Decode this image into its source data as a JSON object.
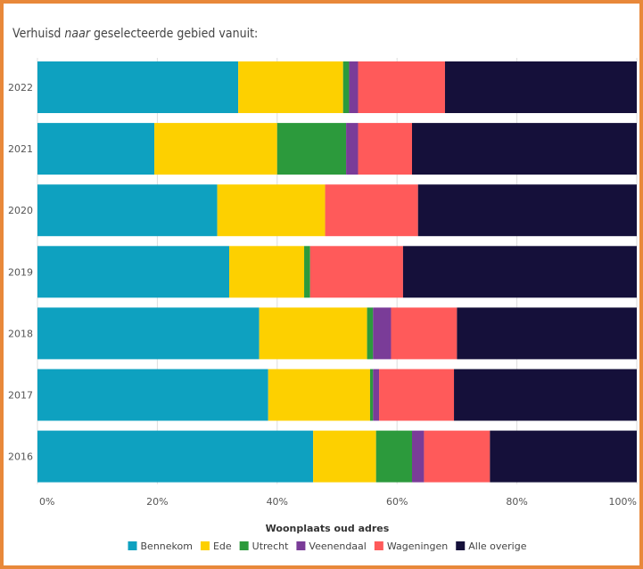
{
  "title": {
    "before": "Verhuisd ",
    "emphasis": "naar",
    "after": " geselecteerde gebied vanuit:"
  },
  "chart_data": {
    "type": "bar",
    "orientation": "horizontal",
    "stacked": true,
    "percent_stacked": true,
    "categories": [
      "2022",
      "2021",
      "2020",
      "2019",
      "2018",
      "2017",
      "2016"
    ],
    "series": [
      {
        "name": "Bennekom",
        "color": "#0ea1c0",
        "values": [
          33.5,
          19.5,
          30.0,
          32.0,
          37.0,
          38.5,
          46.0
        ]
      },
      {
        "name": "Ede",
        "color": "#fdd000",
        "values": [
          17.5,
          20.5,
          18.0,
          12.5,
          18.0,
          17.0,
          10.5
        ]
      },
      {
        "name": "Utrecht",
        "color": "#2c9a3c",
        "values": [
          1.0,
          11.5,
          0.0,
          1.0,
          1.0,
          0.5,
          6.0
        ]
      },
      {
        "name": "Veenendaal",
        "color": "#7a3c98",
        "values": [
          1.5,
          2.0,
          0.0,
          0.0,
          3.0,
          1.0,
          2.0
        ]
      },
      {
        "name": "Wageningen",
        "color": "#ff5a5a",
        "values": [
          14.5,
          9.0,
          15.5,
          15.5,
          11.0,
          12.5,
          11.0
        ]
      },
      {
        "name": "Alle overige",
        "color": "#15103a",
        "values": [
          32.0,
          37.5,
          36.5,
          39.0,
          30.0,
          30.5,
          24.5
        ]
      }
    ],
    "x_ticks": [
      "0%",
      "20%",
      "40%",
      "60%",
      "80%",
      "100%"
    ],
    "xlim": [
      0,
      100
    ],
    "grid": true,
    "legend": {
      "title": "Woonplaats oud adres",
      "position": "bottom"
    }
  }
}
